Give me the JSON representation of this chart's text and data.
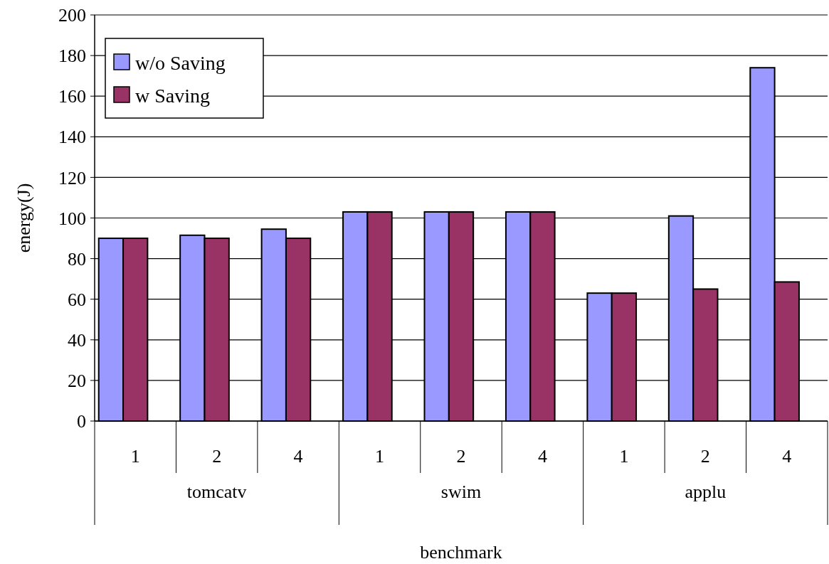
{
  "chart_data": {
    "type": "bar",
    "xlabel": "benchmark",
    "ylabel": "energy(J)",
    "categories": [
      "1",
      "2",
      "4",
      "1",
      "2",
      "4",
      "1",
      "2",
      "4"
    ],
    "annotations": [
      "tomcatv",
      "swim",
      "applu"
    ],
    "series": [
      {
        "name": "w/o Saving",
        "color": "#9999ff",
        "values": [
          90,
          91.5,
          94.5,
          103,
          103,
          103,
          63,
          101,
          174
        ]
      },
      {
        "name": "w Saving",
        "color": "#993366",
        "values": [
          90,
          90,
          90,
          103,
          103,
          103,
          63,
          65,
          68.5
        ]
      }
    ],
    "ylim": [
      0,
      200
    ],
    "yticks": [
      0,
      20,
      40,
      60,
      80,
      100,
      120,
      140,
      160,
      180,
      200
    ],
    "grid": "y",
    "legend": "top left"
  }
}
